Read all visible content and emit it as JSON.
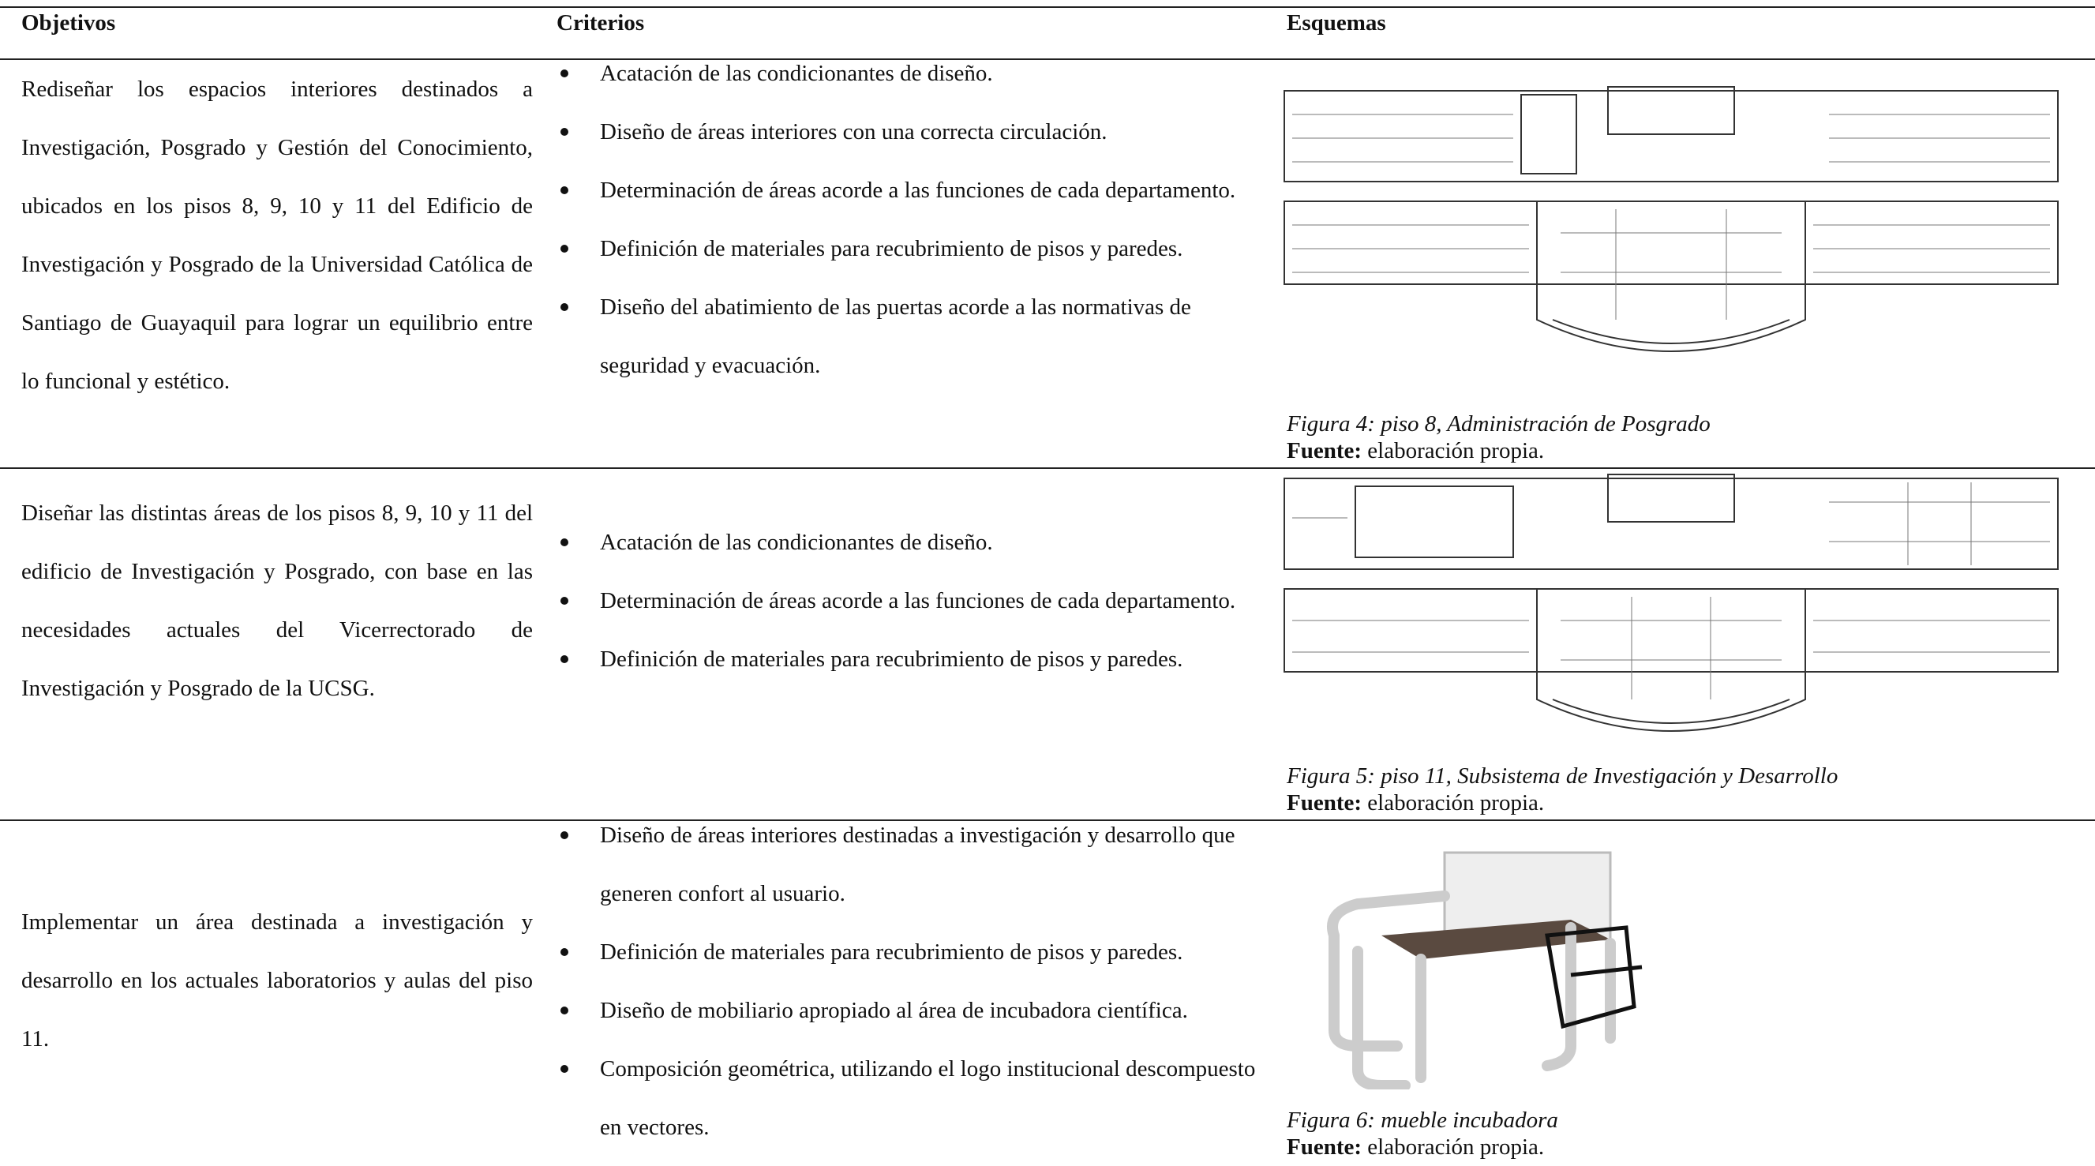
{
  "table": {
    "header": [
      "Objetivos",
      "Criterios",
      "Esquemas"
    ],
    "rows": [
      {
        "objective": "Rediseñar los espacios interiores destinados a Investigación, Posgrado y Gestión del Conocimiento, ubicados en los pisos 8, 9, 10 y 11 del Edificio de Investigación y Posgrado de la Universidad Católica de Santiago de Guayaquil para lograr un equilibrio entre lo funcional y estético.",
        "criteria": [
          "Acatación de las condicionantes de diseño.",
          "Diseño de  áreas interiores con una correcta circulación.",
          "Determinación de áreas acorde a las funciones de cada departamento.",
          "Definición de materiales para recubrimiento de pisos y paredes.",
          "Diseño del abatimiento de las puertas acorde a las normativas de seguridad y evacuación."
        ],
        "caption": "Figura 4: piso 8, Administración de Posgrado",
        "source_label": "Fuente:",
        "source_text": "elaboración propia."
      },
      {
        "objective": "Diseñar las distintas áreas de los pisos 8, 9, 10 y 11 del edificio de Investigación y Posgrado, con base en las necesidades actuales del Vicerrectorado de Investigación y Posgrado de la UCSG.",
        "criteria": [
          "Acatación de las condicionantes de diseño.",
          "Determinación de áreas acorde a las funciones de cada departamento.",
          "Definición de materiales para recubrimiento de pisos y paredes."
        ],
        "caption": "Figura 5: piso 11, Subsistema de Investigación y Desarrollo",
        "source_label": "Fuente:",
        "source_text": "elaboración propia."
      },
      {
        "objective": "Implementar un área destinada a investigación y desarrollo en los actuales laboratorios y aulas del piso 11.",
        "criteria": [
          "Diseño de áreas interiores destinadas a investigación y desarrollo que generen confort al usuario.",
          "Definición de materiales para recubrimiento de pisos y paredes.",
          "Diseño de mobiliario apropiado al área de incubadora científica.",
          "Composición geométrica, utilizando el logo institucional descompuesto en vectores."
        ],
        "caption": "Figura 6: mueble incubadora",
        "source_label": "Fuente:",
        "source_text": "elaboración propia."
      }
    ]
  }
}
